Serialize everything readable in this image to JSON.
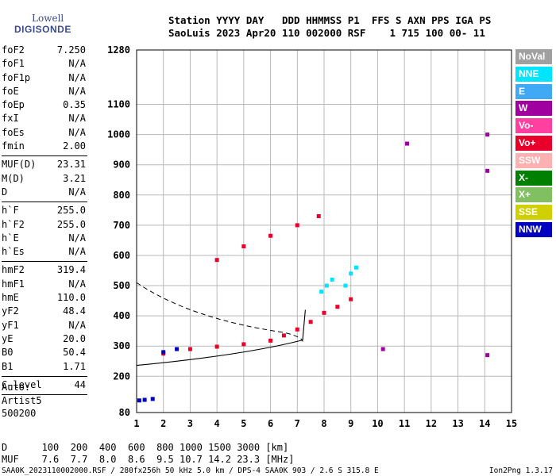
{
  "logo": {
    "line1": "Lowell",
    "line2": "DIGISONDE"
  },
  "header": {
    "line1": "Station YYYY DAY   DDD HHMMSS P1  FFS S AXN PPS IGA PS",
    "line2": "SaoLuis 2023 Apr20 110 002000 RSF    1 715 100 00- 11"
  },
  "params": [
    {
      "k": "foF2",
      "v": "7.250"
    },
    {
      "k": "foF1",
      "v": "N/A"
    },
    {
      "k": "foF1p",
      "v": "N/A"
    },
    {
      "k": "foE",
      "v": "N/A"
    },
    {
      "k": "foEp",
      "v": "0.35"
    },
    {
      "k": "fxI",
      "v": "N/A"
    },
    {
      "k": "foEs",
      "v": "N/A"
    },
    {
      "k": "fmin",
      "v": "2.00"
    },
    {
      "sep": true
    },
    {
      "k": "MUF(D)",
      "v": "23.31"
    },
    {
      "k": "M(D)",
      "v": "3.21"
    },
    {
      "k": "D",
      "v": "N/A"
    },
    {
      "sep": true
    },
    {
      "k": "h`F",
      "v": "255.0"
    },
    {
      "k": "h`F2",
      "v": "255.0"
    },
    {
      "k": "h`E",
      "v": "N/A"
    },
    {
      "k": "h`Es",
      "v": "N/A"
    },
    {
      "sep": true
    },
    {
      "k": "hmF2",
      "v": "319.4"
    },
    {
      "k": "hmF1",
      "v": "N/A"
    },
    {
      "k": "hmE",
      "v": "110.0"
    },
    {
      "k": "yF2",
      "v": "48.4"
    },
    {
      "k": "yF1",
      "v": "N/A"
    },
    {
      "k": "yE",
      "v": "20.0"
    },
    {
      "k": "B0",
      "v": "50.4"
    },
    {
      "k": "B1",
      "v": "1.71"
    },
    {
      "sep": true
    },
    {
      "k": "C-level",
      "v": "44"
    },
    {
      "sep": true
    }
  ],
  "auto": {
    "line1": "Auto:",
    "line2": "Artist5",
    "line3": "500200"
  },
  "footer": {
    "d_row": "D      100  200  400  600  800 1000 1500 3000 [km]",
    "muf_row": "MUF    7.6  7.7  8.0  8.6  9.5 10.7 14.2 23.3 [MHz]",
    "bottom": "SAA0K_2023110002000.RSF / 280fx256h 50 kHz 5.0 km / DPS-4 SAA0K 903 / 2.6 S 315.8 E",
    "version": "Ion2Png 1.3.17"
  },
  "legend": [
    {
      "label": "NoVal",
      "color": "#a0a0a0"
    },
    {
      "label": "NNE",
      "color": "#00e5ff"
    },
    {
      "label": "E",
      "color": "#3fa9f5"
    },
    {
      "label": "W",
      "color": "#a000a0"
    },
    {
      "label": "Vo-",
      "color": "#ff40a0"
    },
    {
      "label": "Vo+",
      "color": "#e8002a"
    },
    {
      "label": "SSW",
      "color": "#ffb0b0"
    },
    {
      "label": "X-",
      "color": "#008000"
    },
    {
      "label": "X+",
      "color": "#80c060"
    },
    {
      "label": "SSE",
      "color": "#d0d000"
    },
    {
      "label": "NNW",
      "color": "#0000c0"
    }
  ],
  "chart_data": {
    "type": "scatter",
    "xlim": [
      1,
      15
    ],
    "ylim": [
      80,
      1280
    ],
    "x_ticks": [
      1,
      2,
      3,
      4,
      5,
      6,
      7,
      8,
      9,
      10,
      11,
      12,
      13,
      14,
      15
    ],
    "y_ticks": [
      80,
      200,
      300,
      400,
      500,
      600,
      700,
      800,
      900,
      1000,
      1100,
      1280
    ],
    "grid": true,
    "series": [
      {
        "name": "Vo+",
        "color": "#e8002a",
        "x": [
          2.0,
          3.0,
          4.0,
          5.0,
          6.0,
          6.5,
          7.0,
          7.5,
          8.0,
          8.5,
          9.0,
          4.0,
          5.0,
          6.0,
          7.0,
          7.8
        ],
        "y": [
          275,
          290,
          298,
          306,
          318,
          335,
          355,
          380,
          410,
          430,
          455,
          585,
          630,
          665,
          700,
          730
        ]
      },
      {
        "name": "NNE",
        "color": "#00e5ff",
        "x": [
          7.9,
          8.1,
          8.3,
          8.8,
          9.0,
          9.2
        ],
        "y": [
          480,
          500,
          520,
          500,
          540,
          560
        ]
      },
      {
        "name": "NNW",
        "color": "#0000c0",
        "x": [
          1.1,
          1.3,
          1.6,
          2.0,
          2.5
        ],
        "y": [
          120,
          122,
          125,
          280,
          290
        ]
      },
      {
        "name": "W",
        "color": "#a000a0",
        "x": [
          10.2,
          14.1,
          14.1,
          14.1,
          11.1
        ],
        "y": [
          290,
          1000,
          880,
          270,
          970
        ]
      }
    ]
  }
}
